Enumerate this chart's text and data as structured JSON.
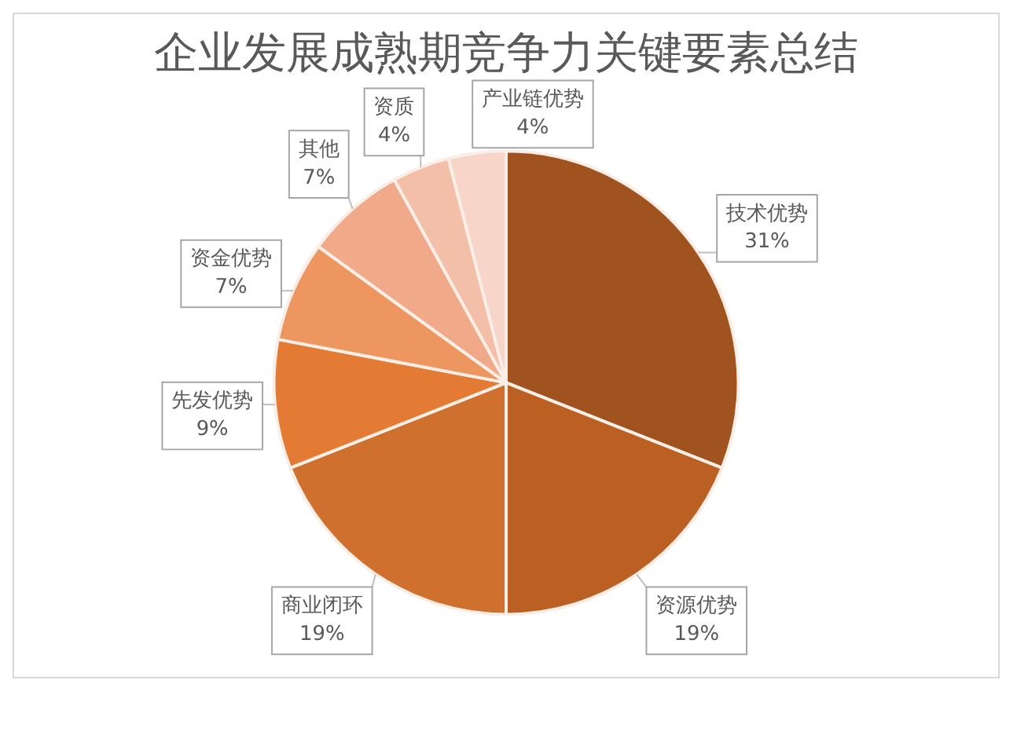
{
  "chart_data": {
    "type": "pie",
    "title": "企业发展成熟期竞争力关键要素总结",
    "categories": [
      "技术优势",
      "资源优势",
      "商业闭环",
      "先发优势",
      "资金优势",
      "其他",
      "资质",
      "产业链优势"
    ],
    "values": [
      31,
      19,
      19,
      9,
      7,
      7,
      4,
      4
    ],
    "value_labels": [
      "31%",
      "19%",
      "19%",
      "9%",
      "7%",
      "7%",
      "4%",
      "4%"
    ],
    "colors": [
      "#a0531f",
      "#bb5f22",
      "#d0702e",
      "#e37b34",
      "#ee9660",
      "#f0aa8a",
      "#f4bfa8",
      "#f7d5c8"
    ]
  }
}
